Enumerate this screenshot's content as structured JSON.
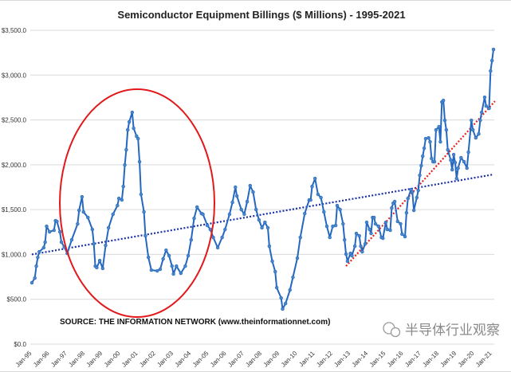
{
  "chart_data": {
    "type": "line",
    "title": "Semiconductor Equipment Billings ($ Millions) - 1995-2021",
    "xlabel": "",
    "ylabel": "",
    "ylim": [
      0,
      3500
    ],
    "y_ticks": [
      "$0.0",
      "$500.0",
      "$1,000.0",
      "$1,500.0",
      "$2,000.0",
      "$2,500.0",
      "$3,000.0",
      "$3,500.0"
    ],
    "x_ticks": [
      "Jan-95",
      "Jan-96",
      "Jan-97",
      "Jan-98",
      "Jan-99",
      "Jan-00",
      "Jan-01",
      "Jan-02",
      "Jan-03",
      "Jan-04",
      "Jan-05",
      "Jan-06",
      "Jan-07",
      "Jan-08",
      "Jan-09",
      "Jan-10",
      "Jan-11",
      "Jan-12",
      "Jan-13",
      "Jan-14",
      "Jan-15",
      "Jan-16",
      "Jan-17",
      "Jan-18",
      "Jan-19",
      "Jan-20",
      "Jan-21"
    ],
    "grid": "horizontal",
    "legend": "none",
    "series": [
      {
        "color": "#2367c0",
        "markers": true,
        "x": [
          "1995-01",
          "1995-03",
          "1995-04",
          "1995-05",
          "1995-06",
          "1995-09",
          "1995-10",
          "1995-11",
          "1996-01",
          "1996-04",
          "1996-05",
          "1996-06",
          "1996-08",
          "1996-09",
          "1996-11",
          "1997-01",
          "1997-04",
          "1997-08",
          "1997-09",
          "1997-11",
          "1997-12",
          "1998-03",
          "1998-06",
          "1998-07",
          "1998-08",
          "1998-09",
          "1998-11",
          "1999-01",
          "1999-03",
          "1999-05",
          "1999-08",
          "1999-11",
          "1999-12",
          "2000-02",
          "2000-03",
          "2000-04",
          "2000-05",
          "2000-06",
          "2000-07",
          "2000-09",
          "2000-10",
          "2000-12",
          "2001-01",
          "2001-02",
          "2001-03",
          "2001-05",
          "2001-06",
          "2001-08",
          "2001-10",
          "2002-02",
          "2002-04",
          "2002-06",
          "2002-08",
          "2002-10",
          "2002-12",
          "2003-01",
          "2003-03",
          "2003-06",
          "2003-09",
          "2003-11",
          "2004-01",
          "2004-03",
          "2004-05",
          "2004-08",
          "2004-09",
          "2004-12",
          "2005-02",
          "2005-04",
          "2005-07",
          "2005-10",
          "2005-12",
          "2006-03",
          "2006-05",
          "2006-07",
          "2006-08",
          "2006-11",
          "2007-01",
          "2007-03",
          "2007-05",
          "2007-07",
          "2007-09",
          "2007-11",
          "2008-01",
          "2008-03",
          "2008-05",
          "2008-06",
          "2008-08",
          "2008-10",
          "2008-11",
          "2009-02",
          "2009-03",
          "2009-05",
          "2009-08",
          "2009-10",
          "2010-01",
          "2010-03",
          "2010-06",
          "2010-09",
          "2010-10",
          "2010-11",
          "2011-01",
          "2011-03",
          "2011-05",
          "2011-07",
          "2011-09",
          "2011-11",
          "2012-01",
          "2012-03",
          "2012-04",
          "2012-06",
          "2012-08",
          "2012-09",
          "2012-10",
          "2012-11",
          "2013-01",
          "2013-02",
          "2013-04",
          "2013-05",
          "2013-07",
          "2013-08",
          "2013-09",
          "2013-11",
          "2013-12",
          "2014-02",
          "2014-03",
          "2014-04",
          "2014-05",
          "2014-06",
          "2014-08",
          "2014-10",
          "2014-11",
          "2015-01",
          "2015-02",
          "2015-04",
          "2015-05",
          "2015-06",
          "2015-07",
          "2015-09",
          "2015-11",
          "2015-12",
          "2016-02",
          "2016-03",
          "2016-04",
          "2016-06",
          "2016-07",
          "2016-08",
          "2016-10",
          "2016-11",
          "2016-12",
          "2017-01",
          "2017-02",
          "2017-03",
          "2017-04",
          "2017-06",
          "2017-07",
          "2017-08",
          "2017-09",
          "2017-10",
          "2017-11",
          "2018-01",
          "2018-02",
          "2018-03",
          "2018-04",
          "2018-05",
          "2018-06",
          "2018-07",
          "2018-09",
          "2018-10",
          "2018-11",
          "2018-12",
          "2019-01",
          "2019-02",
          "2019-04",
          "2019-06",
          "2019-08",
          "2019-09",
          "2019-11",
          "2019-12",
          "2020-02",
          "2020-04",
          "2020-05",
          "2020-06",
          "2020-08",
          "2020-09",
          "2020-11",
          "2020-12",
          "2021-01",
          "2021-02"
        ],
        "values": [
          684,
          737,
          870,
          968,
          1030,
          1075,
          1137,
          1314,
          1252,
          1270,
          1376,
          1368,
          1252,
          1137,
          1083,
          1012,
          1163,
          1341,
          1492,
          1643,
          1474,
          1412,
          1279,
          1119,
          870,
          853,
          932,
          844,
          1101,
          1297,
          1448,
          1545,
          1625,
          1608,
          1758,
          1998,
          2167,
          2389,
          2478,
          2584,
          2407,
          2318,
          2291,
          2034,
          1670,
          1474,
          1208,
          968,
          826,
          817,
          835,
          950,
          1048,
          986,
          870,
          782,
          870,
          790,
          870,
          986,
          1163,
          1403,
          1528,
          1456,
          1448,
          1323,
          1279,
          1190,
          1075,
          1190,
          1279,
          1448,
          1581,
          1750,
          1652,
          1501,
          1448,
          1590,
          1767,
          1696,
          1501,
          1385,
          1297,
          1359,
          1297,
          1092,
          924,
          808,
          630,
          515,
          391,
          453,
          604,
          746,
          959,
          1190,
          1456,
          1607,
          1607,
          1758,
          1847,
          1670,
          1634,
          1474,
          1314,
          1190,
          1314,
          1323,
          1545,
          1501,
          1341,
          1163,
          1004,
          924,
          1012,
          986,
          1092,
          1234,
          1208,
          1092,
          1030,
          1119,
          1359,
          1279,
          1234,
          1412,
          1412,
          1341,
          1314,
          1190,
          1181,
          1359,
          1279,
          1270,
          1519,
          1572,
          1590,
          1368,
          1341,
          1226,
          1199,
          1465,
          1625,
          1723,
          1696,
          1492,
          1634,
          1714,
          1883,
          1990,
          2096,
          2185,
          2291,
          2300,
          2256,
          2070,
          2034,
          2034,
          2389,
          2425,
          2256,
          2700,
          2718,
          2496,
          2389,
          2167,
          2052,
          1945,
          2114,
          2025,
          1847,
          1963,
          2079,
          2034,
          1963,
          2140,
          2496,
          2389,
          2300,
          2345,
          2496,
          2584,
          2753,
          2655,
          2629,
          3046,
          3162,
          3286
        ]
      }
    ],
    "trendlines": [
      {
        "color": "#1a2fa8",
        "style": "dotted",
        "x": [
          "1995-01",
          "2021-02"
        ],
        "values": [
          1000,
          1892
        ]
      },
      {
        "color": "#e8211b",
        "style": "dotted",
        "x": [
          "2012-10",
          "2021-03"
        ],
        "values": [
          870,
          2709
        ]
      }
    ],
    "annotations": {
      "source": "SOURCE: THE INFORMATION NETWORK (www.theinformationnet.com)",
      "highlight_ellipse_color": "#e3181b",
      "highlight_ellipse_span": [
        "1997-06",
        "2004-09"
      ]
    }
  },
  "watermark": {
    "text": "半导体行业观察",
    "icon": "wechat-logo-icon"
  }
}
